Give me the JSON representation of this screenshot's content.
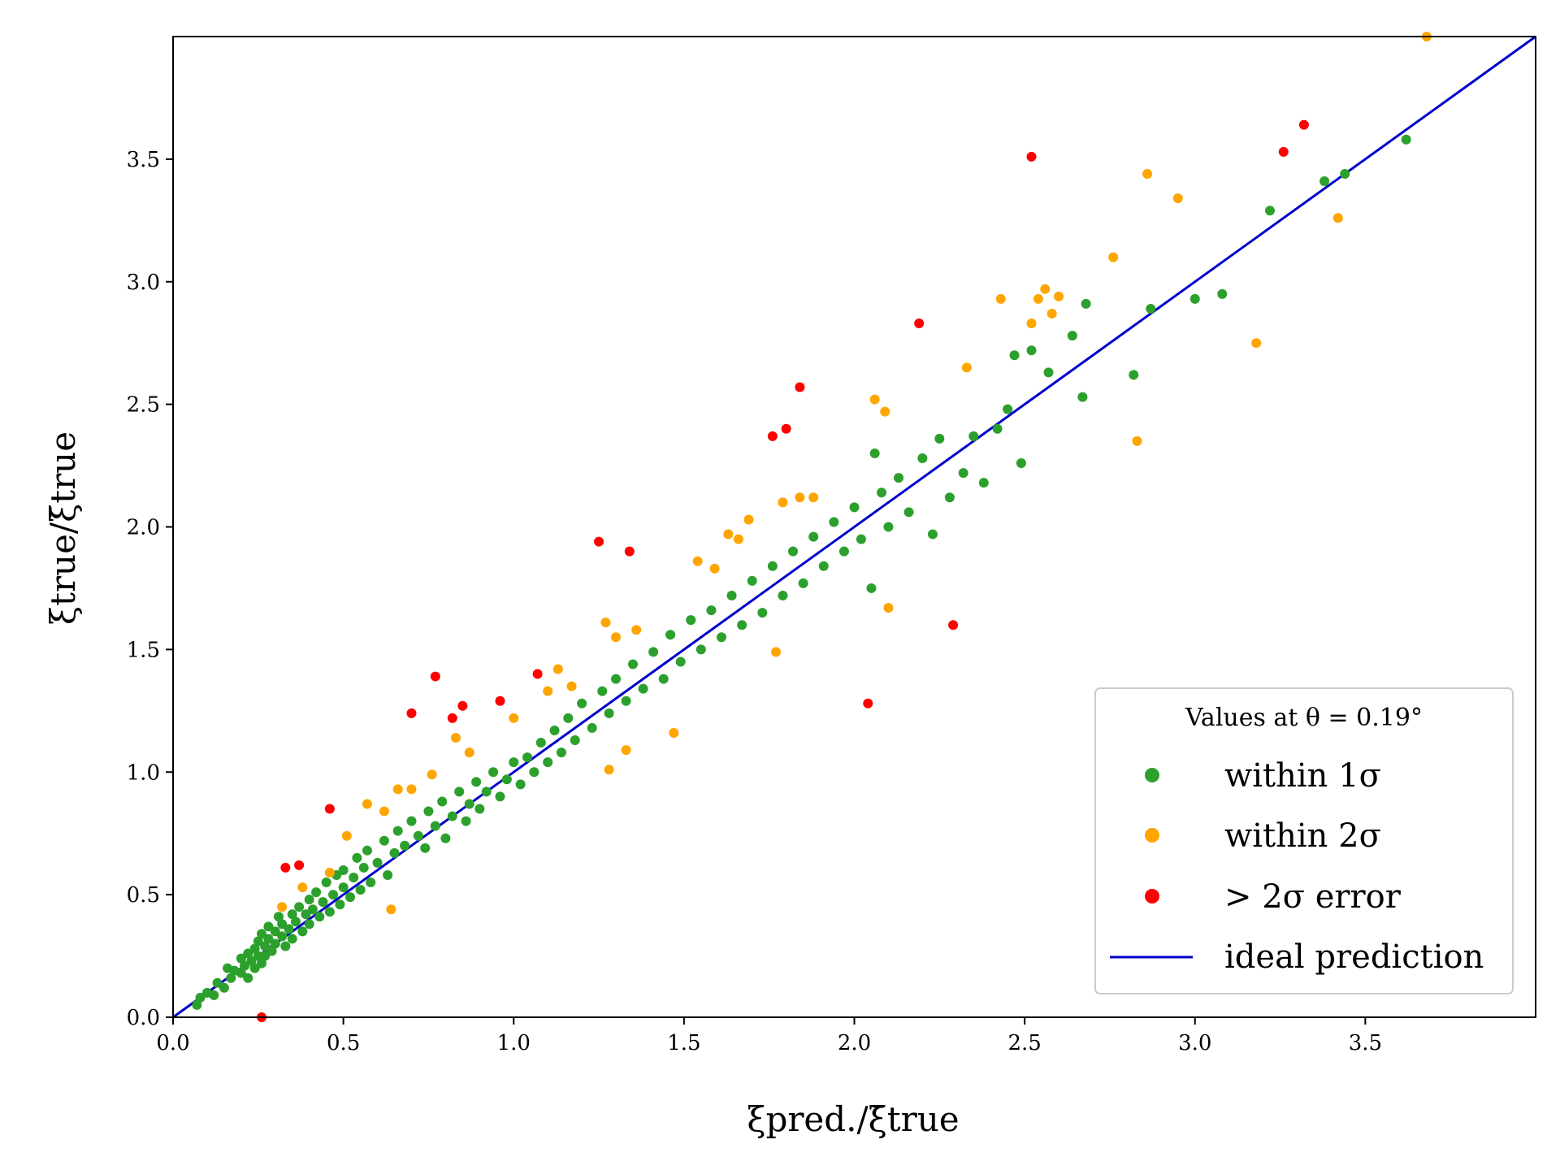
{
  "chart_data": {
    "type": "scatter",
    "title": "",
    "xlabel": "ξpred./ξ̄true",
    "ylabel": "ξtrue/ξ̄true",
    "xlim": [
      0.0,
      4.0
    ],
    "ylim": [
      0.0,
      4.0
    ],
    "xticks": [
      "0.0",
      "0.5",
      "1.0",
      "1.5",
      "2.0",
      "2.5",
      "3.0",
      "3.5"
    ],
    "yticks": [
      "0.0",
      "0.5",
      "1.0",
      "1.5",
      "2.0",
      "2.5",
      "3.0",
      "3.5"
    ],
    "grid": false,
    "legend": {
      "placement": "lower-right",
      "title": "Values at θ = 0.19°",
      "entries": [
        "within 1σ",
        "within 2σ",
        "> 2σ error",
        "ideal prediction"
      ]
    },
    "colors": {
      "within_1sigma": "#2ca02c",
      "within_2sigma": "#ffa500",
      "beyond_2sigma": "#ff0000",
      "ideal": "#0000cd"
    },
    "ideal_line": {
      "x": [
        0.0,
        4.0
      ],
      "y": [
        0.0,
        4.0
      ]
    },
    "series": [
      {
        "name": "within 1σ",
        "color": "#2ca02c",
        "points": [
          [
            0.07,
            0.05
          ],
          [
            0.08,
            0.08
          ],
          [
            0.1,
            0.1
          ],
          [
            0.12,
            0.09
          ],
          [
            0.13,
            0.14
          ],
          [
            0.15,
            0.12
          ],
          [
            0.16,
            0.2
          ],
          [
            0.17,
            0.16
          ],
          [
            0.18,
            0.19
          ],
          [
            0.2,
            0.18
          ],
          [
            0.2,
            0.24
          ],
          [
            0.21,
            0.21
          ],
          [
            0.22,
            0.26
          ],
          [
            0.22,
            0.16
          ],
          [
            0.23,
            0.23
          ],
          [
            0.24,
            0.28
          ],
          [
            0.24,
            0.2
          ],
          [
            0.25,
            0.31
          ],
          [
            0.25,
            0.25
          ],
          [
            0.26,
            0.22
          ],
          [
            0.26,
            0.34
          ],
          [
            0.27,
            0.29
          ],
          [
            0.27,
            0.25
          ],
          [
            0.28,
            0.32
          ],
          [
            0.28,
            0.37
          ],
          [
            0.29,
            0.27
          ],
          [
            0.3,
            0.35
          ],
          [
            0.3,
            0.3
          ],
          [
            0.31,
            0.41
          ],
          [
            0.32,
            0.33
          ],
          [
            0.32,
            0.38
          ],
          [
            0.33,
            0.29
          ],
          [
            0.34,
            0.36
          ],
          [
            0.35,
            0.42
          ],
          [
            0.35,
            0.32
          ],
          [
            0.36,
            0.39
          ],
          [
            0.37,
            0.45
          ],
          [
            0.38,
            0.35
          ],
          [
            0.39,
            0.42
          ],
          [
            0.4,
            0.48
          ],
          [
            0.4,
            0.38
          ],
          [
            0.41,
            0.44
          ],
          [
            0.42,
            0.51
          ],
          [
            0.43,
            0.41
          ],
          [
            0.44,
            0.47
          ],
          [
            0.45,
            0.55
          ],
          [
            0.46,
            0.43
          ],
          [
            0.47,
            0.5
          ],
          [
            0.48,
            0.58
          ],
          [
            0.49,
            0.46
          ],
          [
            0.5,
            0.53
          ],
          [
            0.5,
            0.6
          ],
          [
            0.52,
            0.49
          ],
          [
            0.53,
            0.57
          ],
          [
            0.54,
            0.65
          ],
          [
            0.55,
            0.52
          ],
          [
            0.56,
            0.61
          ],
          [
            0.57,
            0.68
          ],
          [
            0.58,
            0.55
          ],
          [
            0.6,
            0.63
          ],
          [
            0.62,
            0.72
          ],
          [
            0.63,
            0.58
          ],
          [
            0.65,
            0.67
          ],
          [
            0.66,
            0.76
          ],
          [
            0.68,
            0.7
          ],
          [
            0.7,
            0.8
          ],
          [
            0.72,
            0.74
          ],
          [
            0.74,
            0.69
          ],
          [
            0.75,
            0.84
          ],
          [
            0.77,
            0.78
          ],
          [
            0.79,
            0.88
          ],
          [
            0.8,
            0.73
          ],
          [
            0.82,
            0.82
          ],
          [
            0.84,
            0.92
          ],
          [
            0.86,
            0.8
          ],
          [
            0.87,
            0.87
          ],
          [
            0.89,
            0.96
          ],
          [
            0.9,
            0.85
          ],
          [
            0.92,
            0.92
          ],
          [
            0.94,
            1.0
          ],
          [
            0.96,
            0.9
          ],
          [
            0.98,
            0.97
          ],
          [
            1.0,
            1.04
          ],
          [
            1.02,
            0.95
          ],
          [
            1.04,
            1.06
          ],
          [
            1.06,
            1.0
          ],
          [
            1.08,
            1.12
          ],
          [
            1.1,
            1.04
          ],
          [
            1.12,
            1.17
          ],
          [
            1.14,
            1.08
          ],
          [
            1.16,
            1.22
          ],
          [
            1.18,
            1.13
          ],
          [
            1.2,
            1.28
          ],
          [
            1.23,
            1.18
          ],
          [
            1.26,
            1.33
          ],
          [
            1.28,
            1.24
          ],
          [
            1.3,
            1.38
          ],
          [
            1.33,
            1.29
          ],
          [
            1.35,
            1.44
          ],
          [
            1.38,
            1.34
          ],
          [
            1.41,
            1.49
          ],
          [
            1.44,
            1.38
          ],
          [
            1.46,
            1.56
          ],
          [
            1.49,
            1.45
          ],
          [
            1.52,
            1.62
          ],
          [
            1.55,
            1.5
          ],
          [
            1.58,
            1.66
          ],
          [
            1.61,
            1.55
          ],
          [
            1.64,
            1.72
          ],
          [
            1.67,
            1.6
          ],
          [
            1.7,
            1.78
          ],
          [
            1.73,
            1.65
          ],
          [
            1.76,
            1.84
          ],
          [
            1.79,
            1.72
          ],
          [
            1.82,
            1.9
          ],
          [
            1.85,
            1.77
          ],
          [
            1.88,
            1.96
          ],
          [
            1.91,
            1.84
          ],
          [
            1.94,
            2.02
          ],
          [
            1.97,
            1.9
          ],
          [
            2.0,
            2.08
          ],
          [
            2.02,
            1.95
          ],
          [
            2.05,
            1.75
          ],
          [
            2.06,
            2.3
          ],
          [
            2.08,
            2.14
          ],
          [
            2.1,
            2.0
          ],
          [
            2.13,
            2.2
          ],
          [
            2.16,
            2.06
          ],
          [
            2.2,
            2.28
          ],
          [
            2.23,
            1.97
          ],
          [
            2.25,
            2.36
          ],
          [
            2.28,
            2.12
          ],
          [
            2.32,
            2.22
          ],
          [
            2.35,
            2.37
          ],
          [
            2.38,
            2.18
          ],
          [
            2.42,
            2.4
          ],
          [
            2.45,
            2.48
          ],
          [
            2.47,
            2.7
          ],
          [
            2.49,
            2.26
          ],
          [
            2.52,
            2.72
          ],
          [
            2.57,
            2.63
          ],
          [
            2.64,
            2.78
          ],
          [
            2.67,
            2.53
          ],
          [
            2.68,
            2.91
          ],
          [
            2.82,
            2.62
          ],
          [
            2.87,
            2.89
          ],
          [
            3.0,
            2.93
          ],
          [
            3.08,
            2.95
          ],
          [
            3.22,
            3.29
          ],
          [
            3.38,
            3.41
          ],
          [
            3.44,
            3.44
          ],
          [
            3.62,
            3.58
          ]
        ]
      },
      {
        "name": "within 2σ",
        "color": "#ffa500",
        "points": [
          [
            0.32,
            0.45
          ],
          [
            0.38,
            0.53
          ],
          [
            0.46,
            0.59
          ],
          [
            0.51,
            0.74
          ],
          [
            0.57,
            0.87
          ],
          [
            0.62,
            0.84
          ],
          [
            0.64,
            0.44
          ],
          [
            0.66,
            0.93
          ],
          [
            0.7,
            0.93
          ],
          [
            0.76,
            0.99
          ],
          [
            0.83,
            1.14
          ],
          [
            0.87,
            1.08
          ],
          [
            1.0,
            1.22
          ],
          [
            1.1,
            1.33
          ],
          [
            1.13,
            1.42
          ],
          [
            1.17,
            1.35
          ],
          [
            1.27,
            1.61
          ],
          [
            1.3,
            1.55
          ],
          [
            1.36,
            1.58
          ],
          [
            1.28,
            1.01
          ],
          [
            1.33,
            1.09
          ],
          [
            1.47,
            1.16
          ],
          [
            1.54,
            1.86
          ],
          [
            1.59,
            1.83
          ],
          [
            1.63,
            1.97
          ],
          [
            1.66,
            1.95
          ],
          [
            1.69,
            2.03
          ],
          [
            1.77,
            1.49
          ],
          [
            1.79,
            2.1
          ],
          [
            1.84,
            2.12
          ],
          [
            1.88,
            2.12
          ],
          [
            2.06,
            2.52
          ],
          [
            2.09,
            2.47
          ],
          [
            2.1,
            1.67
          ],
          [
            2.33,
            2.65
          ],
          [
            2.43,
            2.93
          ],
          [
            2.52,
            2.83
          ],
          [
            2.54,
            2.93
          ],
          [
            2.56,
            2.97
          ],
          [
            2.6,
            2.94
          ],
          [
            2.58,
            2.87
          ],
          [
            2.76,
            3.1
          ],
          [
            2.83,
            2.35
          ],
          [
            2.86,
            3.44
          ],
          [
            2.95,
            3.34
          ],
          [
            3.18,
            2.75
          ],
          [
            3.42,
            3.26
          ],
          [
            3.68,
            4.0
          ]
        ]
      },
      {
        "name": "> 2σ error",
        "color": "#ff0000",
        "points": [
          [
            0.26,
            0.0
          ],
          [
            0.33,
            0.61
          ],
          [
            0.37,
            0.62
          ],
          [
            0.46,
            0.85
          ],
          [
            0.7,
            1.24
          ],
          [
            0.77,
            1.39
          ],
          [
            0.82,
            1.22
          ],
          [
            0.85,
            1.27
          ],
          [
            0.96,
            1.29
          ],
          [
            1.07,
            1.4
          ],
          [
            1.25,
            1.94
          ],
          [
            1.34,
            1.9
          ],
          [
            1.76,
            2.37
          ],
          [
            1.8,
            2.4
          ],
          [
            1.84,
            2.57
          ],
          [
            2.04,
            1.28
          ],
          [
            2.19,
            2.83
          ],
          [
            2.29,
            1.6
          ],
          [
            2.52,
            3.51
          ],
          [
            3.26,
            3.53
          ],
          [
            3.32,
            3.64
          ]
        ]
      }
    ]
  }
}
